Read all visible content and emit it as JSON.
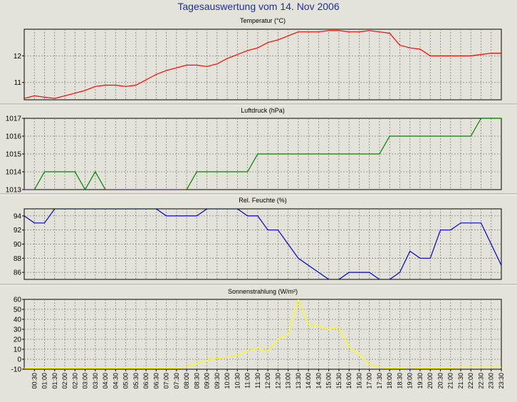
{
  "page_title": "Tagesauswertung vom 14. Nov 2006",
  "x_labels": [
    "00:30",
    "01:00",
    "01:30",
    "02:00",
    "02:30",
    "03:00",
    "03:30",
    "04:00",
    "04:30",
    "05:00",
    "05:30",
    "06:00",
    "06:30",
    "07:00",
    "07:30",
    "08:00",
    "08:30",
    "09:00",
    "09:30",
    "10:00",
    "10:30",
    "11:00",
    "11:30",
    "12:00",
    "12:30",
    "13:00",
    "13:30",
    "14:00",
    "14:30",
    "15:00",
    "15:30",
    "16:00",
    "16:30",
    "17:00",
    "17:30",
    "18:00",
    "18:30",
    "19:00",
    "19:30",
    "20:00",
    "20:30",
    "21:00",
    "21:30",
    "22:00",
    "22:30",
    "23:00",
    "23:30"
  ],
  "chart_data": [
    {
      "type": "line",
      "title": "Temperatur (°C)",
      "color": "#ff0000",
      "ylim": [
        10.35,
        13.0
      ],
      "yticks": [
        11,
        12
      ],
      "x": [
        0,
        0.5,
        1,
        1.5,
        2,
        2.5,
        3,
        3.5,
        4,
        4.5,
        5,
        5.5,
        6,
        6.5,
        7,
        7.5,
        8,
        8.5,
        9,
        9.5,
        10,
        10.5,
        11,
        11.5,
        12,
        12.5,
        13,
        13.5,
        14,
        14.5,
        15,
        15.5,
        16,
        16.5,
        17,
        17.5,
        18,
        18.5,
        19,
        19.5,
        20,
        20.5,
        21,
        21.5,
        22,
        22.5,
        23,
        23.5
      ],
      "values": [
        10.4,
        10.5,
        10.45,
        10.4,
        10.5,
        10.6,
        10.7,
        10.85,
        10.9,
        10.9,
        10.85,
        10.9,
        11.1,
        11.3,
        11.45,
        11.55,
        11.65,
        11.65,
        11.6,
        11.7,
        11.9,
        12.05,
        12.2,
        12.3,
        12.5,
        12.6,
        12.75,
        12.9,
        12.9,
        12.9,
        12.95,
        12.95,
        12.9,
        12.9,
        12.95,
        12.9,
        12.85,
        12.4,
        12.3,
        12.25,
        12.0,
        12.0,
        12.0,
        12.0,
        12.0,
        12.05,
        12.1,
        12.1
      ]
    },
    {
      "type": "line",
      "title": "Luftdruck (hPa)",
      "color": "#008000",
      "ylim": [
        1013,
        1017
      ],
      "yticks": [
        1013,
        1014,
        1015,
        1016,
        1017
      ],
      "x": [
        0,
        0.5,
        1,
        1.5,
        2,
        2.5,
        3,
        3.5,
        4,
        4.5,
        5,
        5.5,
        6,
        6.5,
        7,
        7.5,
        8,
        8.5,
        9,
        9.5,
        10,
        10.5,
        11,
        11.5,
        12,
        12.5,
        13,
        13.5,
        14,
        14.5,
        15,
        15.5,
        16,
        16.5,
        17,
        17.5,
        18,
        18.5,
        19,
        19.5,
        20,
        20.5,
        21,
        21.5,
        22,
        22.5,
        23,
        23.5
      ],
      "values": [
        1013,
        1013,
        1014,
        1014,
        1014,
        1014,
        1013,
        1014,
        1013,
        1013,
        1013,
        1013,
        1013,
        1013,
        1013,
        1013,
        1013,
        1014,
        1014,
        1014,
        1014,
        1014,
        1014,
        1015,
        1015,
        1015,
        1015,
        1015,
        1015,
        1015,
        1015,
        1015,
        1015,
        1015,
        1015,
        1015,
        1016,
        1016,
        1016,
        1016,
        1016,
        1016,
        1016,
        1016,
        1016,
        1017,
        1017,
        1017
      ]
    },
    {
      "type": "line",
      "title": "Rel. Feuchte (%)",
      "color": "#0000cc",
      "ylim": [
        85,
        95
      ],
      "yticks": [
        86,
        88,
        90,
        92,
        94
      ],
      "x": [
        0,
        0.5,
        1,
        1.5,
        2,
        2.5,
        3,
        3.5,
        4,
        4.5,
        5,
        5.5,
        6,
        6.5,
        7,
        7.5,
        8,
        8.5,
        9,
        9.5,
        10,
        10.5,
        11,
        11.5,
        12,
        12.5,
        13,
        13.5,
        14,
        14.5,
        15,
        15.5,
        16,
        16.5,
        17,
        17.5,
        18,
        18.5,
        19,
        19.5,
        20,
        20.5,
        21,
        21.5,
        22,
        22.5,
        23,
        23.5
      ],
      "values": [
        94,
        93,
        93,
        95,
        95,
        95,
        95,
        95,
        95,
        95,
        95,
        95,
        95,
        95,
        94,
        94,
        94,
        94,
        95,
        95,
        95,
        95,
        94,
        94,
        92,
        92,
        90,
        88,
        87,
        86,
        85,
        85,
        86,
        86,
        86,
        85,
        85,
        86,
        89,
        88,
        88,
        92,
        92,
        93,
        93,
        93,
        90,
        87
      ]
    },
    {
      "type": "line",
      "title": "Sonnenstrahlung (W/m²)",
      "color": "#ffff00",
      "ylim": [
        -10,
        60
      ],
      "yticks": [
        -10,
        0,
        10,
        20,
        30,
        40,
        50,
        60
      ],
      "x": [
        0,
        0.5,
        1,
        1.5,
        2,
        2.5,
        3,
        3.5,
        4,
        4.5,
        5,
        5.5,
        6,
        6.5,
        7,
        7.5,
        8,
        8.5,
        9,
        9.5,
        10,
        10.5,
        11,
        11.5,
        12,
        12.5,
        13,
        13.5,
        14,
        14.5,
        15,
        15.5,
        16,
        16.5,
        17,
        17.5,
        18,
        18.5,
        19,
        19.5,
        20,
        20.5,
        21,
        21.5,
        22,
        22.5,
        23,
        23.5
      ],
      "values": [
        -9,
        -9,
        -9,
        -9,
        -9,
        -9,
        -9,
        -9,
        -9,
        -9,
        -9,
        -9,
        -9,
        -9,
        -9,
        -9,
        -8,
        -4,
        -1,
        1,
        2,
        4,
        8,
        11,
        8,
        20,
        25,
        60,
        35,
        33,
        30,
        32,
        12,
        5,
        -5,
        -8,
        -9,
        -9,
        -8,
        -9,
        -9,
        -9,
        -9,
        -8,
        -8,
        -8,
        -8,
        -8
      ]
    }
  ]
}
